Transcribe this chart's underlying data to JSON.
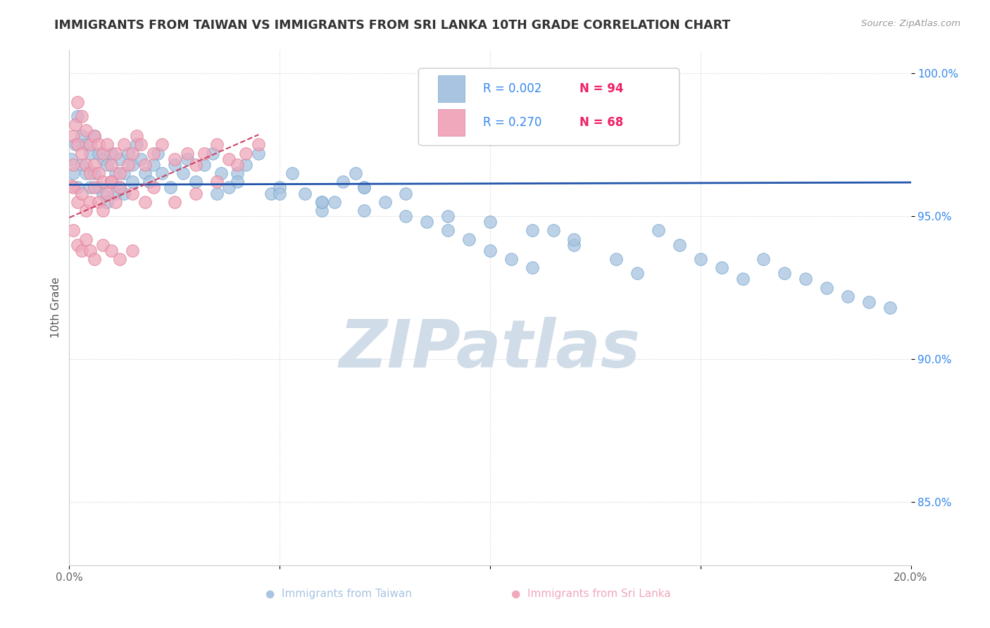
{
  "title": "IMMIGRANTS FROM TAIWAN VS IMMIGRANTS FROM SRI LANKA 10TH GRADE CORRELATION CHART",
  "source_text": "Source: ZipAtlas.com",
  "ylabel": "10th Grade",
  "xlim": [
    0.0,
    0.2
  ],
  "ylim": [
    0.828,
    1.008
  ],
  "xticks": [
    0.0,
    0.05,
    0.1,
    0.15,
    0.2
  ],
  "xtick_labels": [
    "0.0%",
    "",
    "",
    "",
    "20.0%"
  ],
  "yticks": [
    0.85,
    0.9,
    0.95,
    1.0
  ],
  "ytick_labels": [
    "85.0%",
    "90.0%",
    "95.0%",
    "100.0%"
  ],
  "taiwan_color": "#a8c4e0",
  "taiwan_edge": "#7aaad0",
  "srilanka_color": "#f0a8bc",
  "srilanka_edge": "#e08098",
  "taiwan_R": "0.002",
  "taiwan_N": "94",
  "srilanka_R": "0.270",
  "srilanka_N": "68",
  "legend_R_color": "#3388ee",
  "legend_N_color": "#ee2266",
  "taiwan_trendline_color": "#2255aa",
  "srilanka_trendline_color": "#cc4466",
  "watermark_color": "#d0dce8",
  "taiwan_scatter_x": [
    0.0005,
    0.001,
    0.0015,
    0.002,
    0.002,
    0.003,
    0.003,
    0.004,
    0.004,
    0.005,
    0.005,
    0.006,
    0.006,
    0.007,
    0.007,
    0.008,
    0.008,
    0.009,
    0.009,
    0.01,
    0.01,
    0.011,
    0.011,
    0.012,
    0.012,
    0.013,
    0.013,
    0.014,
    0.015,
    0.015,
    0.016,
    0.017,
    0.018,
    0.019,
    0.02,
    0.021,
    0.022,
    0.024,
    0.025,
    0.027,
    0.028,
    0.03,
    0.032,
    0.034,
    0.035,
    0.036,
    0.038,
    0.04,
    0.042,
    0.045,
    0.048,
    0.05,
    0.053,
    0.056,
    0.06,
    0.063,
    0.065,
    0.068,
    0.07,
    0.075,
    0.08,
    0.085,
    0.09,
    0.095,
    0.1,
    0.105,
    0.11,
    0.115,
    0.12,
    0.13,
    0.135,
    0.14,
    0.145,
    0.15,
    0.155,
    0.16,
    0.165,
    0.17,
    0.175,
    0.18,
    0.185,
    0.19,
    0.195,
    0.06,
    0.07,
    0.08,
    0.09,
    0.1,
    0.11,
    0.12,
    0.04,
    0.05,
    0.06,
    0.07
  ],
  "taiwan_scatter_y": [
    0.97,
    0.965,
    0.975,
    0.985,
    0.96,
    0.978,
    0.968,
    0.975,
    0.965,
    0.972,
    0.96,
    0.978,
    0.965,
    0.972,
    0.96,
    0.97,
    0.958,
    0.968,
    0.955,
    0.972,
    0.962,
    0.965,
    0.958,
    0.97,
    0.96,
    0.965,
    0.958,
    0.972,
    0.968,
    0.962,
    0.975,
    0.97,
    0.965,
    0.962,
    0.968,
    0.972,
    0.965,
    0.96,
    0.968,
    0.965,
    0.97,
    0.962,
    0.968,
    0.972,
    0.958,
    0.965,
    0.96,
    0.965,
    0.968,
    0.972,
    0.958,
    0.96,
    0.965,
    0.958,
    0.952,
    0.955,
    0.962,
    0.965,
    0.96,
    0.955,
    0.95,
    0.948,
    0.945,
    0.942,
    0.938,
    0.935,
    0.932,
    0.945,
    0.94,
    0.935,
    0.93,
    0.945,
    0.94,
    0.935,
    0.932,
    0.928,
    0.935,
    0.93,
    0.928,
    0.925,
    0.922,
    0.92,
    0.918,
    0.955,
    0.96,
    0.958,
    0.95,
    0.948,
    0.945,
    0.942,
    0.962,
    0.958,
    0.955,
    0.952
  ],
  "srilanka_scatter_x": [
    0.0005,
    0.001,
    0.001,
    0.0015,
    0.002,
    0.002,
    0.003,
    0.003,
    0.004,
    0.004,
    0.005,
    0.005,
    0.006,
    0.006,
    0.007,
    0.007,
    0.008,
    0.008,
    0.009,
    0.01,
    0.01,
    0.011,
    0.012,
    0.013,
    0.014,
    0.015,
    0.016,
    0.017,
    0.018,
    0.02,
    0.022,
    0.025,
    0.028,
    0.03,
    0.032,
    0.035,
    0.038,
    0.04,
    0.042,
    0.045,
    0.001,
    0.002,
    0.003,
    0.004,
    0.005,
    0.006,
    0.007,
    0.008,
    0.009,
    0.01,
    0.011,
    0.012,
    0.015,
    0.018,
    0.02,
    0.025,
    0.03,
    0.035,
    0.001,
    0.002,
    0.003,
    0.004,
    0.005,
    0.006,
    0.008,
    0.01,
    0.012,
    0.015
  ],
  "srilanka_scatter_y": [
    0.9605,
    0.978,
    0.968,
    0.982,
    0.99,
    0.975,
    0.985,
    0.972,
    0.98,
    0.968,
    0.975,
    0.965,
    0.978,
    0.968,
    0.975,
    0.965,
    0.972,
    0.962,
    0.975,
    0.968,
    0.962,
    0.972,
    0.965,
    0.975,
    0.968,
    0.972,
    0.978,
    0.975,
    0.968,
    0.972,
    0.975,
    0.97,
    0.972,
    0.968,
    0.972,
    0.975,
    0.97,
    0.968,
    0.972,
    0.975,
    0.96,
    0.955,
    0.958,
    0.952,
    0.955,
    0.96,
    0.955,
    0.952,
    0.958,
    0.962,
    0.955,
    0.96,
    0.958,
    0.955,
    0.96,
    0.955,
    0.958,
    0.962,
    0.945,
    0.94,
    0.938,
    0.942,
    0.938,
    0.935,
    0.94,
    0.938,
    0.935,
    0.938
  ],
  "taiwan_trend_x": [
    0.0,
    0.2
  ],
  "taiwan_trend_y": [
    0.961,
    0.9618
  ],
  "srilanka_trend_x": [
    0.0,
    0.045
  ],
  "srilanka_trend_y": [
    0.9495,
    0.9785
  ]
}
